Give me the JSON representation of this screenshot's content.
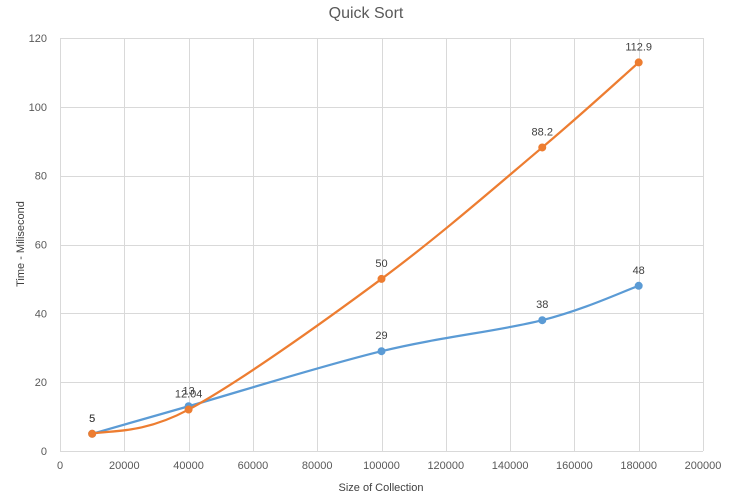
{
  "chart_data": {
    "type": "line",
    "title": "Quick Sort",
    "xlabel": "Size of Collection",
    "ylabel": "Time - Milisecond",
    "xlim": [
      0,
      200000
    ],
    "ylim": [
      0,
      120
    ],
    "xticks": [
      "0",
      "20000",
      "40000",
      "60000",
      "80000",
      "100000",
      "120000",
      "140000",
      "160000",
      "180000",
      "200000"
    ],
    "yticks": [
      "0",
      "20",
      "40",
      "60",
      "80",
      "100",
      "120"
    ],
    "grid": true,
    "smooth": true,
    "series": [
      {
        "color": "#5B9BD5",
        "x": [
          10000,
          40000,
          100000,
          150000,
          180000
        ],
        "y": [
          5,
          13,
          29,
          38,
          48
        ],
        "labels": [
          "5",
          "13",
          "29",
          "38",
          "48"
        ]
      },
      {
        "color": "#ED7D31",
        "x": [
          10000,
          40000,
          100000,
          150000,
          180000
        ],
        "y": [
          5,
          12.04,
          50,
          88.2,
          112.9
        ],
        "labels": [
          "5",
          "12.04",
          "50",
          "88.2",
          "112.9"
        ]
      }
    ]
  }
}
